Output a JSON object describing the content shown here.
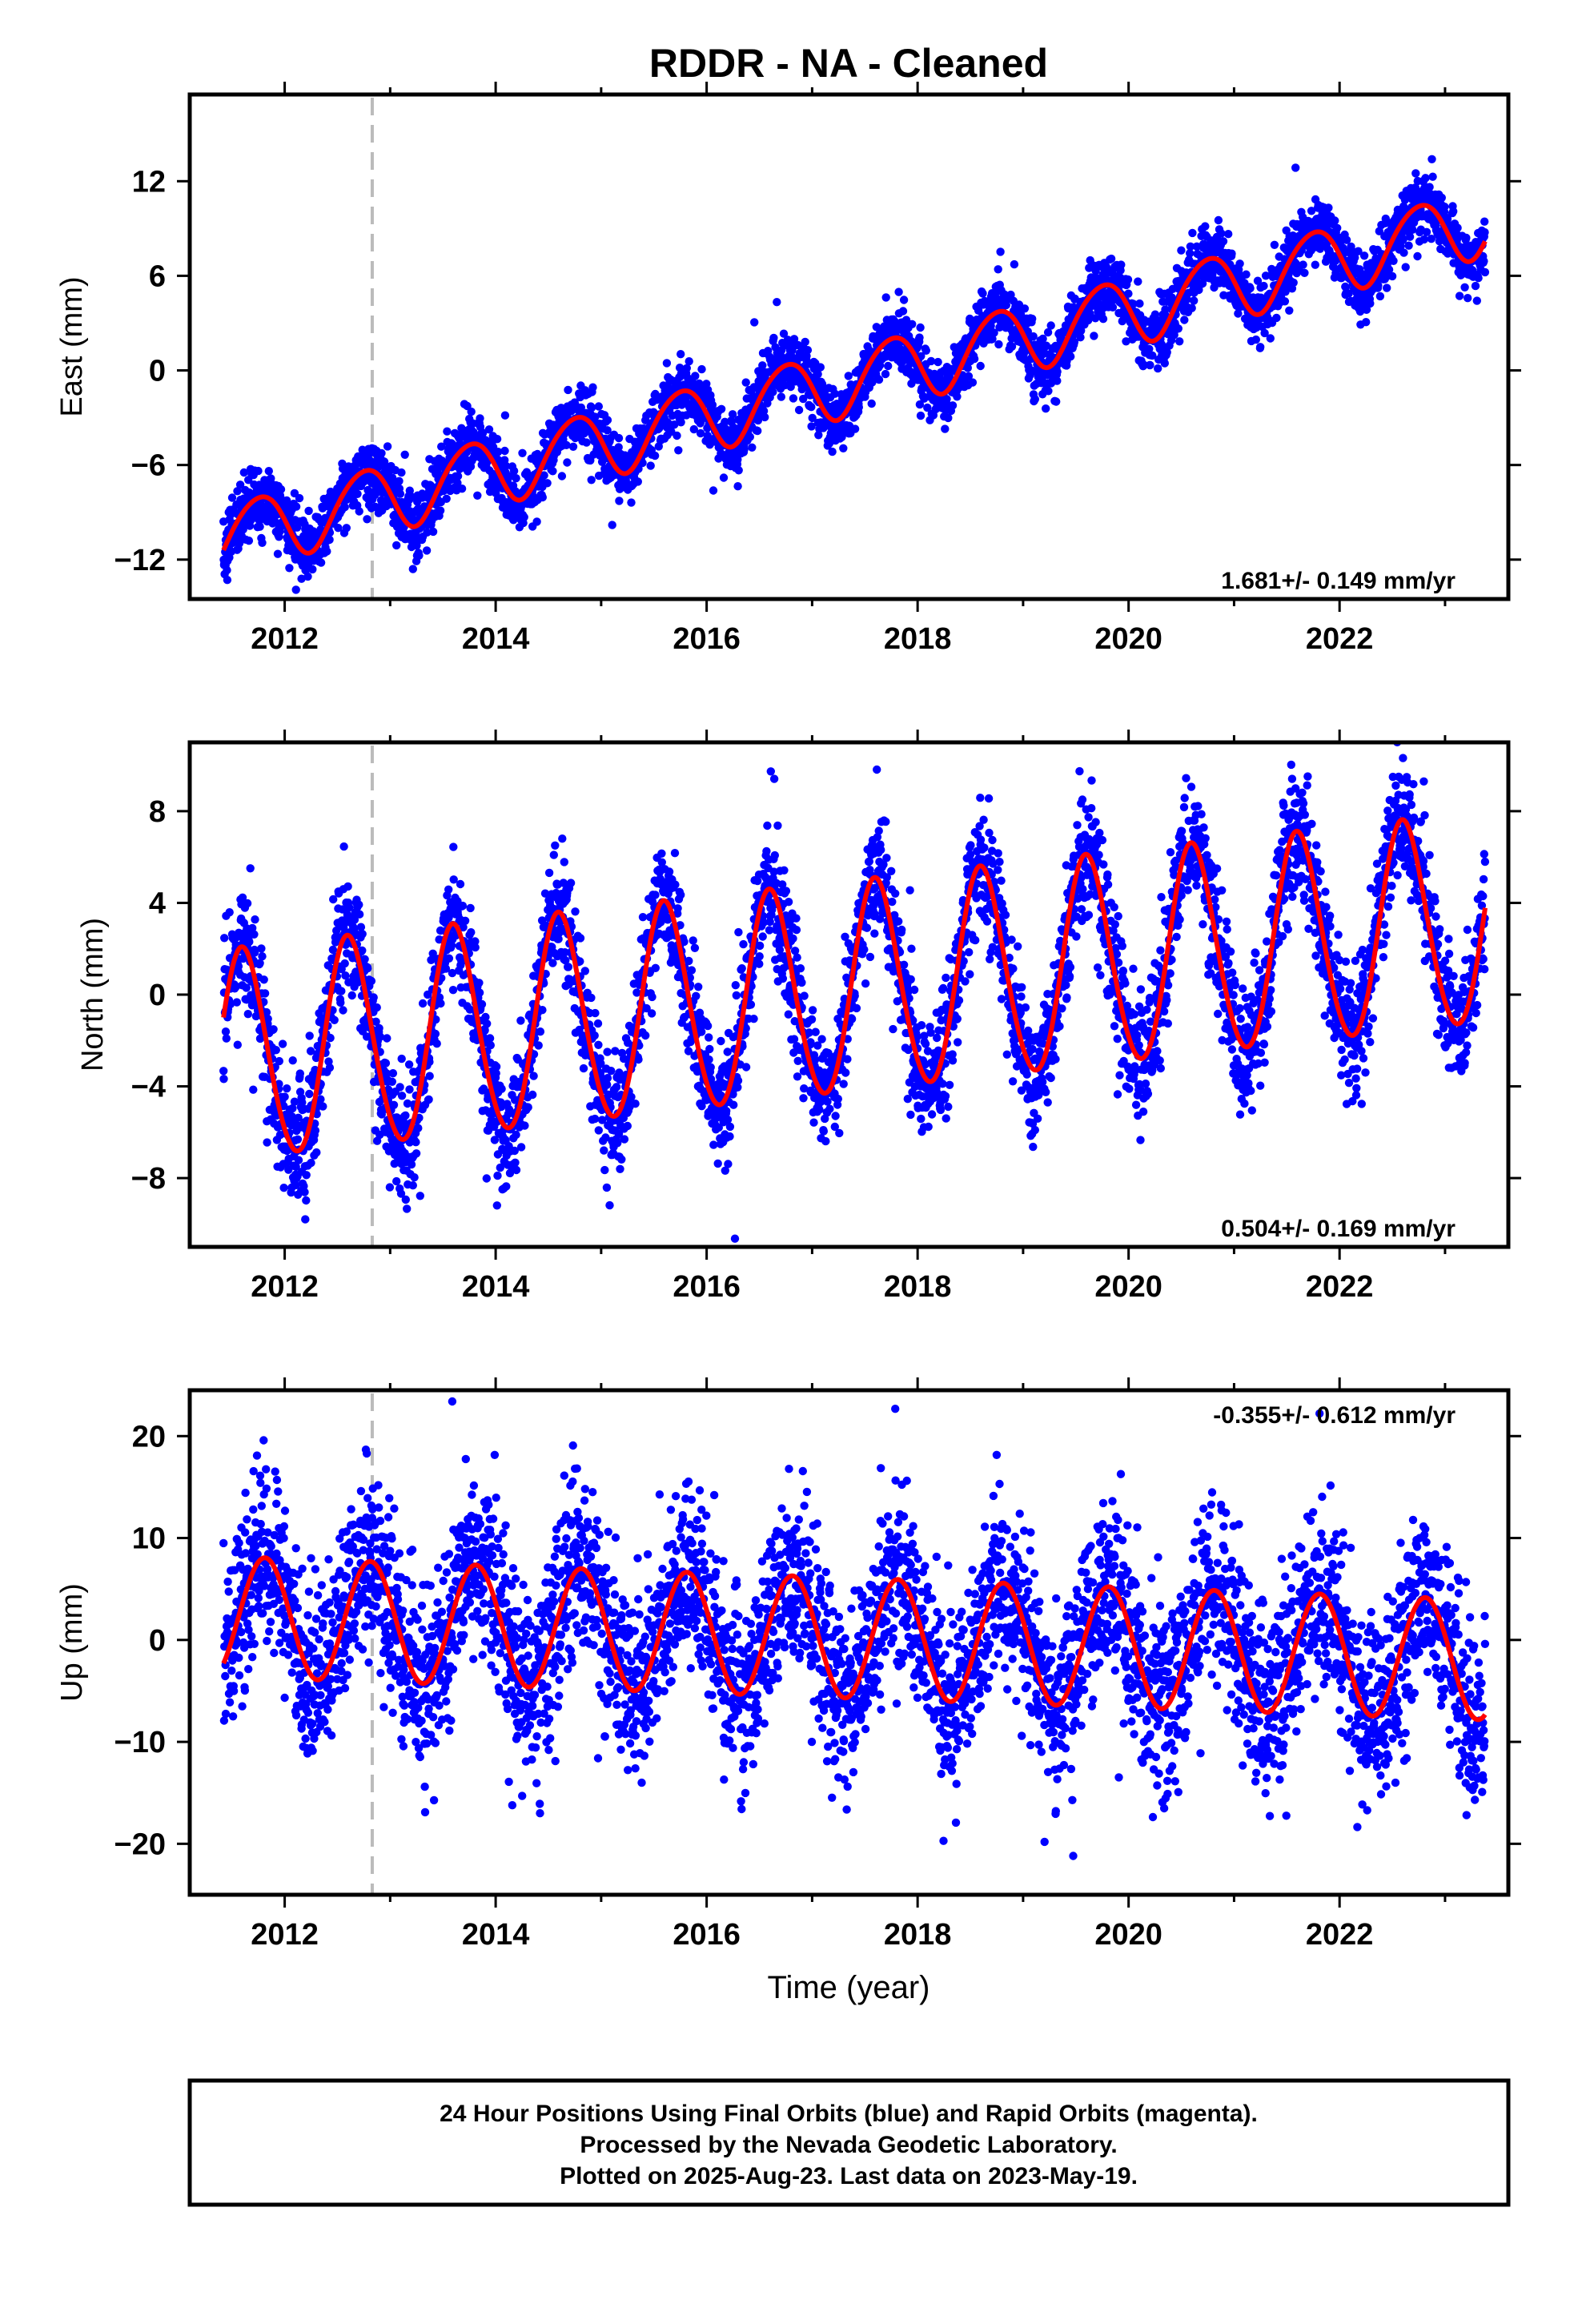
{
  "title": "RDDR  - NA - Cleaned",
  "xlabel": "Time (year)",
  "footer": {
    "line1": "24 Hour Positions Using Final Orbits (blue) and Rapid Orbits (magenta).",
    "line2": "Processed by the Nevada Geodetic Laboratory.",
    "line3": "Plotted on 2025-Aug-23. Last data on 2023-May-19."
  },
  "colors": {
    "points": "#0000ff",
    "fit": "#ff0000",
    "event_line": "#bbbbbb",
    "axes": "#000000"
  },
  "chart_data": [
    {
      "type": "scatter",
      "component": "East",
      "ylabel": "East (mm)",
      "rate_label": "1.681+/- 0.149 mm/yr",
      "rate_position": "bottom-right",
      "xlim": [
        2011.1,
        2023.6
      ],
      "ylim": [
        -14.5,
        17.5
      ],
      "x_ticks": [
        2012,
        2014,
        2016,
        2018,
        2020,
        2022
      ],
      "y_ticks": [
        -12,
        -6,
        0,
        6,
        12
      ],
      "event_line_x": 2012.83,
      "data_start": 2011.42,
      "data_end": 2023.38,
      "model": {
        "rate_mm_per_yr": 1.681,
        "rate_sigma": 0.149,
        "reference_epoch": 2011.42,
        "value_at_reference": -10.6,
        "annual_cos_amplitude": -1.0,
        "annual_sin_amplitude": 1.9,
        "semiannual_cos_amplitude": 0.2,
        "semiannual_sin_amplitude": 0.1
      },
      "scatter_noise_mm": 1.0,
      "series": [
        {
          "values": "daily East positions (mm), ~4300 points 2011.4-2023.4"
        },
        {
          "values": "model fit: linear trend + annual + semiannual"
        }
      ]
    },
    {
      "type": "scatter",
      "component": "North",
      "ylabel": "North (mm)",
      "rate_label": "0.504+/- 0.169 mm/yr",
      "rate_position": "bottom-right",
      "xlim": [
        2011.1,
        2023.6
      ],
      "ylim": [
        -11,
        11
      ],
      "x_ticks": [
        2012,
        2014,
        2016,
        2018,
        2020,
        2022
      ],
      "y_ticks": [
        -8,
        -4,
        0,
        4,
        8
      ],
      "event_line_x": 2012.83,
      "data_start": 2011.42,
      "data_end": 2023.38,
      "model": {
        "rate_mm_per_yr": 0.504,
        "rate_sigma": 0.169,
        "reference_epoch": 2011.42,
        "value_at_reference": -2.8,
        "annual_cos_amplitude": 1.8,
        "annual_sin_amplitude": 4.2,
        "semiannual_cos_amplitude": 0.0,
        "semiannual_sin_amplitude": 0.3
      },
      "scatter_noise_mm": 1.3,
      "series": [
        {
          "values": "daily North positions (mm), ~4300 points 2011.4-2023.4"
        },
        {
          "values": "model fit: linear trend + annual + semiannual"
        }
      ]
    },
    {
      "type": "scatter",
      "component": "Up",
      "ylabel": "Up (mm)",
      "rate_label": "-0.355+/- 0.612 mm/yr",
      "rate_position": "top-right",
      "xlim": [
        2011.1,
        2023.6
      ],
      "ylim": [
        -25,
        24.5
      ],
      "x_ticks": [
        2012,
        2014,
        2016,
        2018,
        2020,
        2022
      ],
      "y_ticks": [
        -20,
        -10,
        0,
        10,
        20
      ],
      "event_line_x": 2012.83,
      "data_start": 2011.42,
      "data_end": 2023.38,
      "model": {
        "rate_mm_per_yr": -0.355,
        "rate_sigma": 0.612,
        "reference_epoch": 2011.42,
        "value_at_reference": 2.3,
        "annual_cos_amplitude": -4.6,
        "annual_sin_amplitude": 3.7,
        "semiannual_cos_amplitude": 0.0,
        "semiannual_sin_amplitude": 0.0
      },
      "scatter_noise_mm": 4.5,
      "series": [
        {
          "values": "daily Up positions (mm), ~4300 points 2011.4-2023.4"
        },
        {
          "values": "model fit: linear trend + annual + semiannual"
        }
      ]
    }
  ]
}
